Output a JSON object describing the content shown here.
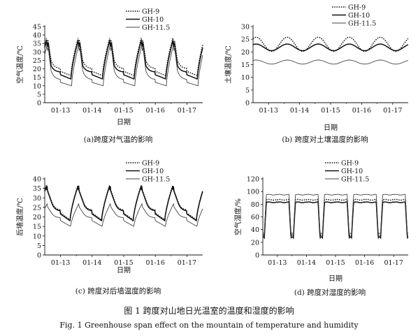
{
  "figure": {
    "caption_cn": "图 1  跨度对山地日光温室的温度和湿度的影响",
    "caption_en": "Fig. 1    Greenhouse span effect on the mountain of temperature and humidity"
  },
  "legend_labels": [
    "GH-9",
    "GH-10",
    "GH-11.5"
  ],
  "chart_data": [
    {
      "type": "line",
      "panel": "a",
      "ylabel": "空气温度/℃",
      "xlabel": "日期",
      "caption": "(a)跨度对气温的影响",
      "ylim": [
        0,
        45
      ],
      "yticks": [
        0,
        5,
        10,
        15,
        20,
        25,
        30,
        35,
        40,
        45
      ],
      "xticks": [
        "01-13",
        "01-14",
        "01-15",
        "01-16",
        "01-17"
      ],
      "xlim": [
        -0.5,
        4.5
      ],
      "grid": false,
      "legend_position": "top",
      "series": [
        {
          "name": "GH-9",
          "style": "dotted",
          "base": 18.5,
          "trough": 16.0,
          "peak": 37.0,
          "rise_start": 0.33,
          "peak_at": 0.54,
          "plateau_end": 0.62,
          "sharp_fall_end": 0.7,
          "sharp_fall_value": 25.0
        },
        {
          "name": "GH-10",
          "style": "solid",
          "base": 16.5,
          "trough": 14.0,
          "peak": 35.5,
          "rise_start": 0.33,
          "peak_at": 0.54,
          "plateau_end": 0.62,
          "sharp_fall_end": 0.7,
          "sharp_fall_value": 22.0
        },
        {
          "name": "GH-11.5",
          "style": "thin",
          "base": 12.0,
          "trough": 10.0,
          "peak": 33.0,
          "rise_start": 0.35,
          "peak_at": 0.56,
          "plateau_end": 0.62,
          "sharp_fall_end": 0.7,
          "sharp_fall_value": 19.0
        }
      ]
    },
    {
      "type": "line",
      "panel": "b",
      "ylabel": "土壤温度/℃",
      "xlabel": "日期",
      "caption": "(b)  跨度对土壤温度的影响",
      "ylim": [
        0,
        30
      ],
      "yticks": [
        0,
        5,
        10,
        15,
        20,
        25,
        30
      ],
      "xticks": [
        "01-13",
        "01-14",
        "01-15",
        "01-16",
        "01-17"
      ],
      "xlim": [
        -0.5,
        4.5
      ],
      "grid": false,
      "legend_position": "top",
      "series": [
        {
          "name": "GH-9",
          "style": "dotted",
          "mean": 23.0,
          "amplitude": 2.8
        },
        {
          "name": "GH-10",
          "style": "solid",
          "mean": 21.8,
          "amplitude": 1.3
        },
        {
          "name": "GH-11.5",
          "style": "thin",
          "mean": 16.0,
          "amplitude": 0.8
        }
      ]
    },
    {
      "type": "line",
      "panel": "c",
      "ylabel": "后墙温度/℃",
      "xlabel": "日期",
      "caption": "(c)  跨度对后墙温度的影响",
      "ylim": [
        0,
        40
      ],
      "yticks": [
        0,
        5,
        10,
        15,
        20,
        25,
        30,
        35,
        40
      ],
      "xticks": [
        "01-13",
        "01-14",
        "01-15",
        "01-16",
        "01-17"
      ],
      "xlim": [
        -0.5,
        4.5
      ],
      "grid": false,
      "legend_position": "top",
      "series": [
        {
          "name": "GH-9",
          "style": "dotted",
          "base": 22.0,
          "trough": 18.5,
          "peak": 36.5,
          "rise_start": 0.3,
          "peak_at": 0.55,
          "plateau_end": 0.58,
          "sharp_fall_end": 0.72,
          "sharp_fall_value": 28.0
        },
        {
          "name": "GH-10",
          "style": "solid",
          "base": 21.5,
          "trough": 18.0,
          "peak": 36.0,
          "rise_start": 0.3,
          "peak_at": 0.55,
          "plateau_end": 0.58,
          "sharp_fall_end": 0.72,
          "sharp_fall_value": 27.5
        },
        {
          "name": "GH-11.5",
          "style": "thin",
          "base": 18.0,
          "trough": 15.0,
          "peak": 27.0,
          "rise_start": 0.32,
          "peak_at": 0.58,
          "plateau_end": 0.6,
          "sharp_fall_end": 0.72,
          "sharp_fall_value": 22.0
        }
      ]
    },
    {
      "type": "line",
      "panel": "d",
      "ylabel": "空气湿度/%",
      "xlabel": "日期",
      "caption": "(d)  跨度对湿度的影响",
      "ylim": [
        0,
        120
      ],
      "yticks": [
        0,
        20,
        40,
        60,
        80,
        100,
        120
      ],
      "xticks": [
        "01-13",
        "01-14",
        "01-15",
        "01-16",
        "01-17"
      ],
      "xlim": [
        -0.5,
        4.5
      ],
      "grid": false,
      "legend_position": "top",
      "series": [
        {
          "name": "GH-9",
          "style": "dotted",
          "high": 87.0,
          "low": 30.0
        },
        {
          "name": "GH-10",
          "style": "solid",
          "high": 83.0,
          "low": 27.0
        },
        {
          "name": "GH-11.5",
          "style": "thin",
          "high": 95.0,
          "low": 33.0
        }
      ]
    }
  ]
}
